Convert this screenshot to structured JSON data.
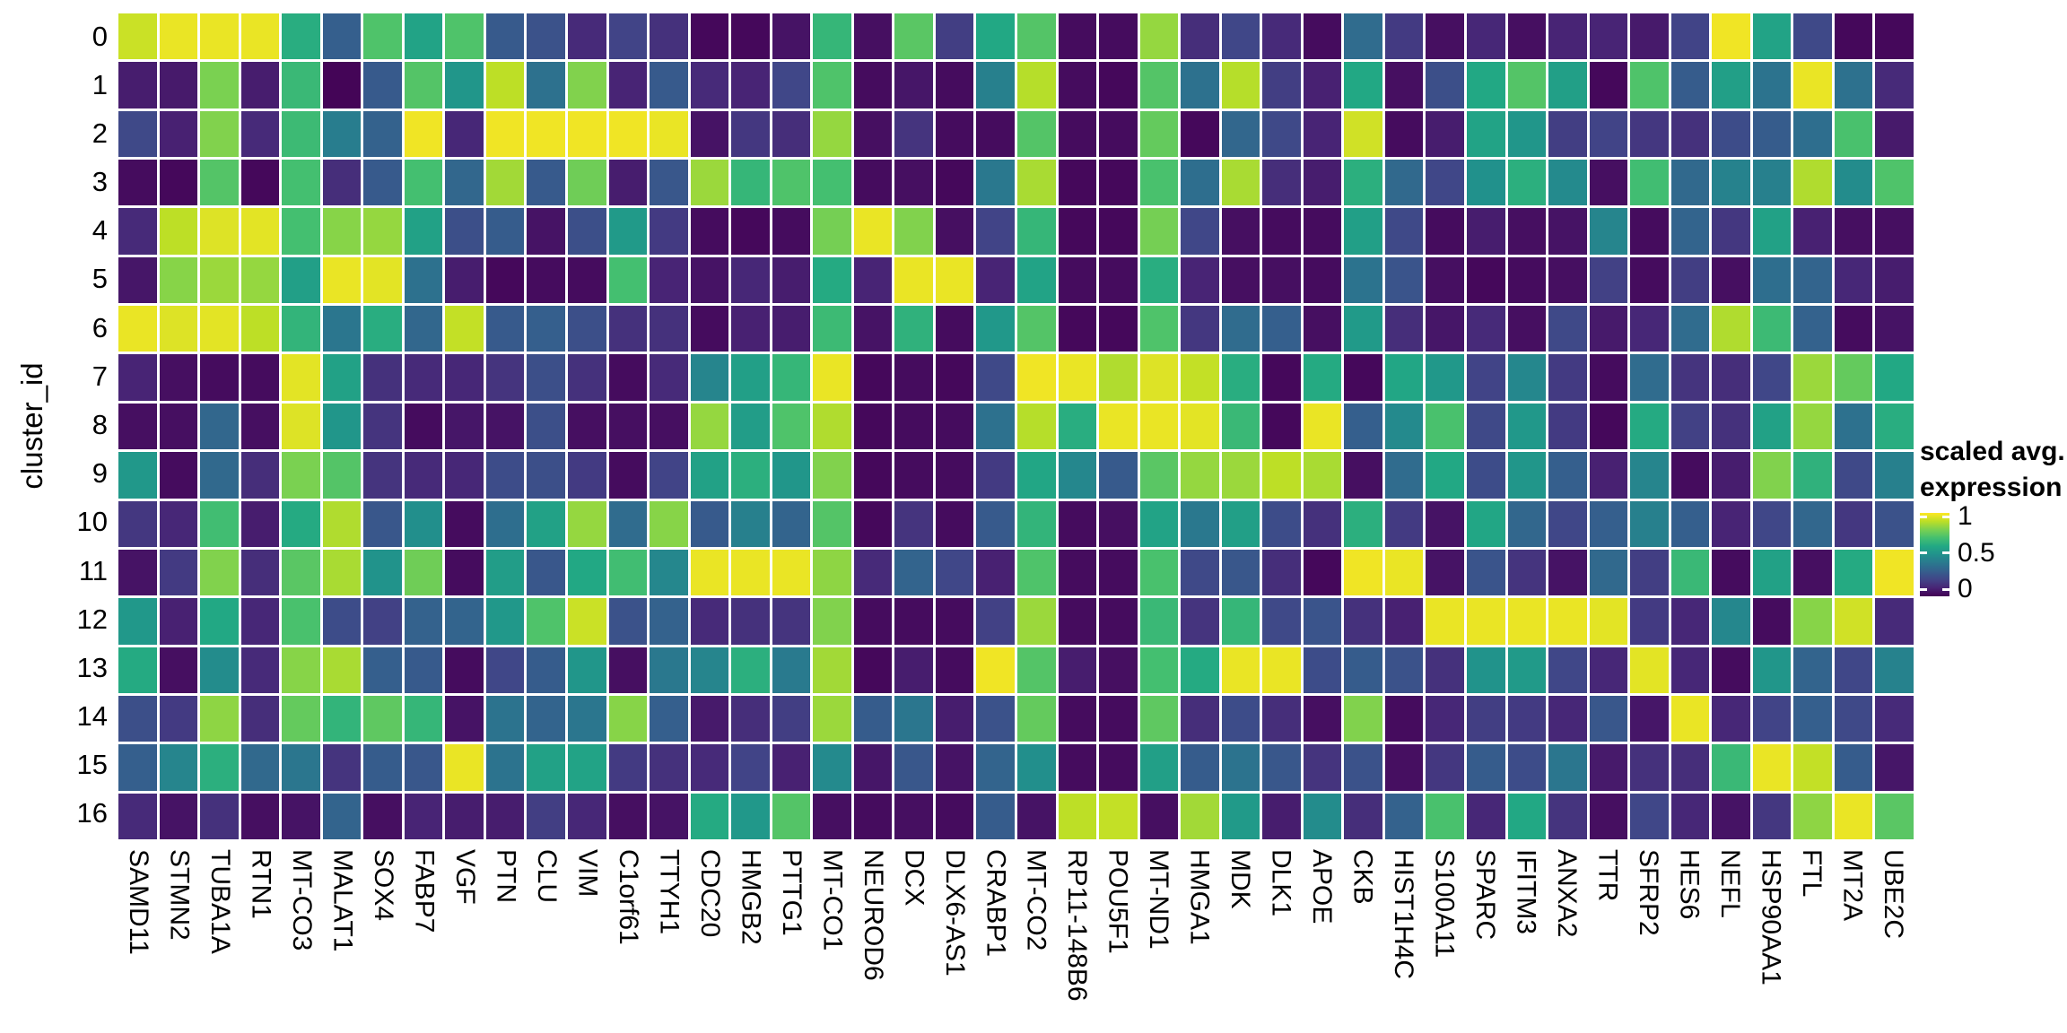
{
  "chart_data": {
    "type": "heatmap",
    "title": "",
    "xlabel": "",
    "ylabel": "cluster_id",
    "x_categories": [
      "SAMD11",
      "STMN2",
      "TUBA1A",
      "RTN1",
      "MT-CO3",
      "MALAT1",
      "SOX4",
      "FABP7",
      "VGF",
      "PTN",
      "CLU",
      "VIM",
      "C1orf61",
      "TTYH1",
      "CDC20",
      "HMGB2",
      "PTTG1",
      "MT-CO1",
      "NEUROD6",
      "DCX",
      "DLX6-AS1",
      "CRABP1",
      "MT-CO2",
      "RP11-148B6",
      "POU5F1",
      "MT-ND1",
      "HMGA1",
      "MDK",
      "DLK1",
      "APOE",
      "CKB",
      "HIST1H4C",
      "S100A11",
      "SPARC",
      "IFITM3",
      "ANXA2",
      "TTR",
      "SFRP2",
      "HES6",
      "NEFL",
      "HSP90AA1",
      "FTL",
      "MT2A",
      "UBE2C"
    ],
    "y_categories": [
      "0",
      "1",
      "2",
      "3",
      "4",
      "5",
      "6",
      "7",
      "8",
      "9",
      "10",
      "11",
      "12",
      "13",
      "14",
      "15",
      "16"
    ],
    "value_range": [
      0,
      1
    ],
    "grid": false,
    "legend_position": "right",
    "values": [
      [
        0.92,
        0.97,
        0.97,
        0.97,
        0.62,
        0.3,
        0.72,
        0.58,
        0.72,
        0.28,
        0.25,
        0.12,
        0.2,
        0.14,
        0.02,
        0.02,
        0.05,
        0.66,
        0.04,
        0.74,
        0.18,
        0.6,
        0.73,
        0.03,
        0.03,
        0.84,
        0.13,
        0.21,
        0.12,
        0.03,
        0.35,
        0.17,
        0.04,
        0.11,
        0.04,
        0.1,
        0.1,
        0.07,
        0.2,
        0.98,
        0.58,
        0.22,
        0.02,
        0.02
      ],
      [
        0.08,
        0.07,
        0.8,
        0.08,
        0.67,
        0.01,
        0.28,
        0.73,
        0.52,
        0.9,
        0.37,
        0.81,
        0.1,
        0.28,
        0.12,
        0.1,
        0.21,
        0.72,
        0.03,
        0.06,
        0.03,
        0.43,
        0.89,
        0.03,
        0.02,
        0.73,
        0.37,
        0.89,
        0.18,
        0.09,
        0.6,
        0.04,
        0.24,
        0.6,
        0.73,
        0.56,
        0.02,
        0.72,
        0.29,
        0.56,
        0.38,
        0.97,
        0.37,
        0.12
      ],
      [
        0.22,
        0.09,
        0.81,
        0.12,
        0.68,
        0.42,
        0.31,
        0.98,
        0.11,
        0.98,
        0.98,
        0.98,
        0.98,
        0.97,
        0.05,
        0.16,
        0.13,
        0.84,
        0.04,
        0.15,
        0.03,
        0.03,
        0.73,
        0.03,
        0.03,
        0.76,
        0.02,
        0.33,
        0.22,
        0.1,
        0.93,
        0.03,
        0.08,
        0.58,
        0.52,
        0.18,
        0.2,
        0.16,
        0.14,
        0.23,
        0.29,
        0.36,
        0.71,
        0.07
      ],
      [
        0.03,
        0.02,
        0.73,
        0.02,
        0.7,
        0.13,
        0.28,
        0.7,
        0.33,
        0.86,
        0.28,
        0.78,
        0.08,
        0.27,
        0.85,
        0.66,
        0.72,
        0.7,
        0.03,
        0.04,
        0.02,
        0.4,
        0.87,
        0.02,
        0.02,
        0.71,
        0.36,
        0.87,
        0.13,
        0.08,
        0.63,
        0.34,
        0.21,
        0.5,
        0.63,
        0.47,
        0.04,
        0.69,
        0.34,
        0.44,
        0.43,
        0.88,
        0.48,
        0.72
      ],
      [
        0.12,
        0.9,
        0.95,
        0.96,
        0.7,
        0.82,
        0.84,
        0.57,
        0.24,
        0.29,
        0.05,
        0.24,
        0.54,
        0.17,
        0.03,
        0.02,
        0.03,
        0.79,
        0.97,
        0.81,
        0.04,
        0.2,
        0.66,
        0.02,
        0.02,
        0.79,
        0.21,
        0.04,
        0.03,
        0.03,
        0.56,
        0.22,
        0.03,
        0.08,
        0.04,
        0.05,
        0.45,
        0.03,
        0.32,
        0.16,
        0.57,
        0.09,
        0.04,
        0.04
      ],
      [
        0.06,
        0.82,
        0.85,
        0.84,
        0.56,
        0.97,
        0.96,
        0.37,
        0.08,
        0.02,
        0.03,
        0.03,
        0.7,
        0.1,
        0.05,
        0.11,
        0.08,
        0.61,
        0.1,
        0.97,
        0.97,
        0.1,
        0.58,
        0.03,
        0.03,
        0.62,
        0.1,
        0.04,
        0.04,
        0.03,
        0.38,
        0.26,
        0.04,
        0.02,
        0.03,
        0.04,
        0.19,
        0.03,
        0.18,
        0.04,
        0.36,
        0.32,
        0.11,
        0.08
      ],
      [
        0.97,
        0.95,
        0.96,
        0.9,
        0.65,
        0.39,
        0.62,
        0.33,
        0.91,
        0.28,
        0.3,
        0.24,
        0.14,
        0.14,
        0.03,
        0.09,
        0.08,
        0.68,
        0.05,
        0.64,
        0.03,
        0.53,
        0.73,
        0.02,
        0.02,
        0.72,
        0.16,
        0.35,
        0.3,
        0.04,
        0.54,
        0.13,
        0.06,
        0.12,
        0.04,
        0.22,
        0.07,
        0.11,
        0.35,
        0.88,
        0.68,
        0.31,
        0.03,
        0.05
      ],
      [
        0.1,
        0.04,
        0.03,
        0.03,
        0.96,
        0.57,
        0.14,
        0.12,
        0.11,
        0.15,
        0.24,
        0.14,
        0.03,
        0.12,
        0.45,
        0.56,
        0.66,
        0.97,
        0.02,
        0.03,
        0.02,
        0.22,
        0.98,
        0.97,
        0.88,
        0.95,
        0.91,
        0.62,
        0.02,
        0.61,
        0.02,
        0.59,
        0.53,
        0.2,
        0.46,
        0.17,
        0.03,
        0.35,
        0.15,
        0.13,
        0.21,
        0.85,
        0.76,
        0.6
      ],
      [
        0.04,
        0.04,
        0.33,
        0.04,
        0.95,
        0.52,
        0.15,
        0.03,
        0.06,
        0.05,
        0.24,
        0.04,
        0.04,
        0.04,
        0.84,
        0.55,
        0.72,
        0.88,
        0.02,
        0.03,
        0.03,
        0.37,
        0.89,
        0.62,
        0.97,
        0.97,
        0.96,
        0.67,
        0.02,
        0.97,
        0.3,
        0.47,
        0.71,
        0.22,
        0.53,
        0.17,
        0.02,
        0.61,
        0.19,
        0.14,
        0.57,
        0.84,
        0.37,
        0.62
      ],
      [
        0.53,
        0.03,
        0.34,
        0.13,
        0.8,
        0.73,
        0.15,
        0.12,
        0.11,
        0.23,
        0.24,
        0.17,
        0.03,
        0.2,
        0.57,
        0.63,
        0.52,
        0.81,
        0.02,
        0.03,
        0.03,
        0.17,
        0.59,
        0.46,
        0.28,
        0.74,
        0.84,
        0.85,
        0.9,
        0.87,
        0.04,
        0.35,
        0.6,
        0.23,
        0.52,
        0.3,
        0.09,
        0.45,
        0.03,
        0.08,
        0.81,
        0.64,
        0.22,
        0.43
      ],
      [
        0.16,
        0.11,
        0.69,
        0.08,
        0.61,
        0.88,
        0.27,
        0.49,
        0.03,
        0.36,
        0.57,
        0.84,
        0.35,
        0.82,
        0.28,
        0.43,
        0.32,
        0.73,
        0.02,
        0.15,
        0.03,
        0.28,
        0.65,
        0.03,
        0.04,
        0.58,
        0.4,
        0.56,
        0.23,
        0.14,
        0.63,
        0.17,
        0.05,
        0.59,
        0.33,
        0.21,
        0.3,
        0.43,
        0.3,
        0.1,
        0.21,
        0.33,
        0.16,
        0.25
      ],
      [
        0.05,
        0.17,
        0.81,
        0.13,
        0.74,
        0.87,
        0.51,
        0.78,
        0.03,
        0.55,
        0.27,
        0.6,
        0.69,
        0.46,
        0.97,
        0.97,
        0.97,
        0.83,
        0.12,
        0.32,
        0.21,
        0.09,
        0.72,
        0.03,
        0.03,
        0.71,
        0.22,
        0.27,
        0.13,
        0.02,
        0.98,
        0.97,
        0.05,
        0.26,
        0.15,
        0.05,
        0.34,
        0.18,
        0.67,
        0.03,
        0.57,
        0.04,
        0.61,
        0.98
      ],
      [
        0.53,
        0.09,
        0.6,
        0.11,
        0.71,
        0.23,
        0.19,
        0.31,
        0.32,
        0.53,
        0.72,
        0.92,
        0.25,
        0.31,
        0.12,
        0.14,
        0.15,
        0.81,
        0.03,
        0.03,
        0.03,
        0.19,
        0.85,
        0.03,
        0.03,
        0.67,
        0.15,
        0.66,
        0.22,
        0.26,
        0.14,
        0.09,
        0.97,
        0.97,
        0.97,
        0.97,
        0.96,
        0.17,
        0.11,
        0.46,
        0.03,
        0.82,
        0.93,
        0.12
      ],
      [
        0.61,
        0.04,
        0.48,
        0.12,
        0.82,
        0.87,
        0.3,
        0.28,
        0.03,
        0.21,
        0.29,
        0.52,
        0.04,
        0.4,
        0.45,
        0.63,
        0.41,
        0.86,
        0.02,
        0.08,
        0.03,
        0.98,
        0.73,
        0.08,
        0.04,
        0.7,
        0.61,
        0.97,
        0.97,
        0.23,
        0.29,
        0.25,
        0.14,
        0.51,
        0.54,
        0.21,
        0.11,
        0.96,
        0.11,
        0.03,
        0.52,
        0.32,
        0.21,
        0.44
      ],
      [
        0.24,
        0.17,
        0.83,
        0.13,
        0.76,
        0.65,
        0.75,
        0.66,
        0.05,
        0.38,
        0.32,
        0.39,
        0.82,
        0.3,
        0.07,
        0.13,
        0.18,
        0.85,
        0.29,
        0.39,
        0.08,
        0.25,
        0.76,
        0.03,
        0.03,
        0.75,
        0.13,
        0.23,
        0.13,
        0.04,
        0.81,
        0.03,
        0.11,
        0.18,
        0.17,
        0.11,
        0.27,
        0.06,
        0.97,
        0.11,
        0.2,
        0.3,
        0.22,
        0.12
      ],
      [
        0.3,
        0.45,
        0.63,
        0.34,
        0.39,
        0.15,
        0.29,
        0.27,
        0.97,
        0.38,
        0.57,
        0.58,
        0.17,
        0.14,
        0.12,
        0.2,
        0.09,
        0.47,
        0.06,
        0.27,
        0.05,
        0.32,
        0.49,
        0.03,
        0.03,
        0.56,
        0.29,
        0.38,
        0.27,
        0.15,
        0.25,
        0.04,
        0.16,
        0.29,
        0.23,
        0.39,
        0.07,
        0.14,
        0.13,
        0.67,
        0.97,
        0.91,
        0.29,
        0.06
      ],
      [
        0.12,
        0.05,
        0.14,
        0.04,
        0.05,
        0.32,
        0.04,
        0.1,
        0.08,
        0.08,
        0.18,
        0.11,
        0.04,
        0.05,
        0.61,
        0.53,
        0.73,
        0.04,
        0.03,
        0.04,
        0.03,
        0.29,
        0.05,
        0.9,
        0.91,
        0.04,
        0.86,
        0.54,
        0.08,
        0.48,
        0.13,
        0.31,
        0.71,
        0.11,
        0.6,
        0.15,
        0.04,
        0.21,
        0.11,
        0.05,
        0.16,
        0.83,
        0.97,
        0.74
      ]
    ],
    "colormap": "viridis",
    "colormap_stops": [
      {
        "pos": 0.0,
        "color": "#440154"
      },
      {
        "pos": 0.1,
        "color": "#482475"
      },
      {
        "pos": 0.2,
        "color": "#414487"
      },
      {
        "pos": 0.3,
        "color": "#355f8d"
      },
      {
        "pos": 0.4,
        "color": "#2a788e"
      },
      {
        "pos": 0.5,
        "color": "#21918c"
      },
      {
        "pos": 0.6,
        "color": "#22a884"
      },
      {
        "pos": 0.7,
        "color": "#44bf70"
      },
      {
        "pos": 0.8,
        "color": "#7ad151"
      },
      {
        "pos": 0.9,
        "color": "#bddf26"
      },
      {
        "pos": 1.0,
        "color": "#fde725"
      }
    ],
    "legend": {
      "title_line1": "scaled avg.",
      "title_line2": "expression",
      "tick_labels": [
        "1",
        "0.5",
        "0"
      ],
      "tick_values": [
        1,
        0.5,
        0
      ]
    },
    "grid_gap_color": "#ffffff"
  },
  "layout_text": {
    "y_axis_title": "cluster_id"
  }
}
